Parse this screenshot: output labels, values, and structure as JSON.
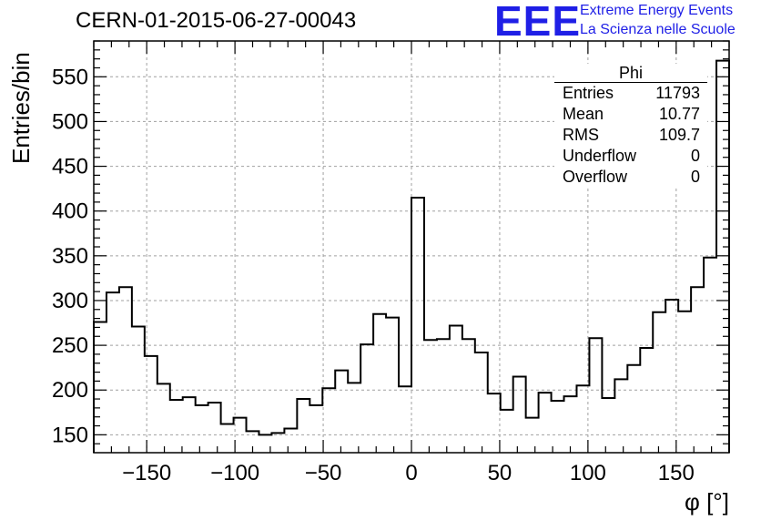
{
  "title": "CERN-01-2015-06-27-00043",
  "logo": {
    "mark": "EEE",
    "line1": "Extreme Energy Events",
    "line2": "La Scienza nelle Scuole",
    "color": "#1f1fe6"
  },
  "stats_box": {
    "title": "Phi",
    "rows": [
      {
        "label": "Entries",
        "value": "11793"
      },
      {
        "label": "Mean",
        "value": "10.77"
      },
      {
        "label": "RMS",
        "value": "109.7"
      },
      {
        "label": "Underflow",
        "value": "0"
      },
      {
        "label": "Overflow",
        "value": "0"
      }
    ]
  },
  "chart_data": {
    "type": "bar",
    "style": "step-histogram",
    "xlabel": "φ [°]",
    "ylabel": "Entries/bin",
    "xlim": [
      -180,
      180
    ],
    "ylim": [
      130,
      590
    ],
    "bin_width": 7.2,
    "x_ticks": [
      -150,
      -100,
      -50,
      0,
      50,
      100,
      150
    ],
    "y_ticks": [
      150,
      200,
      250,
      300,
      350,
      400,
      450,
      500,
      550
    ],
    "grid": true,
    "line_color": "#000000",
    "values": [
      276,
      309,
      315,
      271,
      238,
      207,
      189,
      192,
      183,
      186,
      162,
      169,
      154,
      150,
      152,
      157,
      190,
      183,
      202,
      222,
      208,
      251,
      285,
      281,
      204,
      415,
      256,
      257,
      272,
      257,
      242,
      196,
      178,
      215,
      169,
      197,
      188,
      193,
      205,
      258,
      191,
      212,
      228,
      247,
      287,
      301,
      288,
      315,
      348,
      568
    ]
  }
}
